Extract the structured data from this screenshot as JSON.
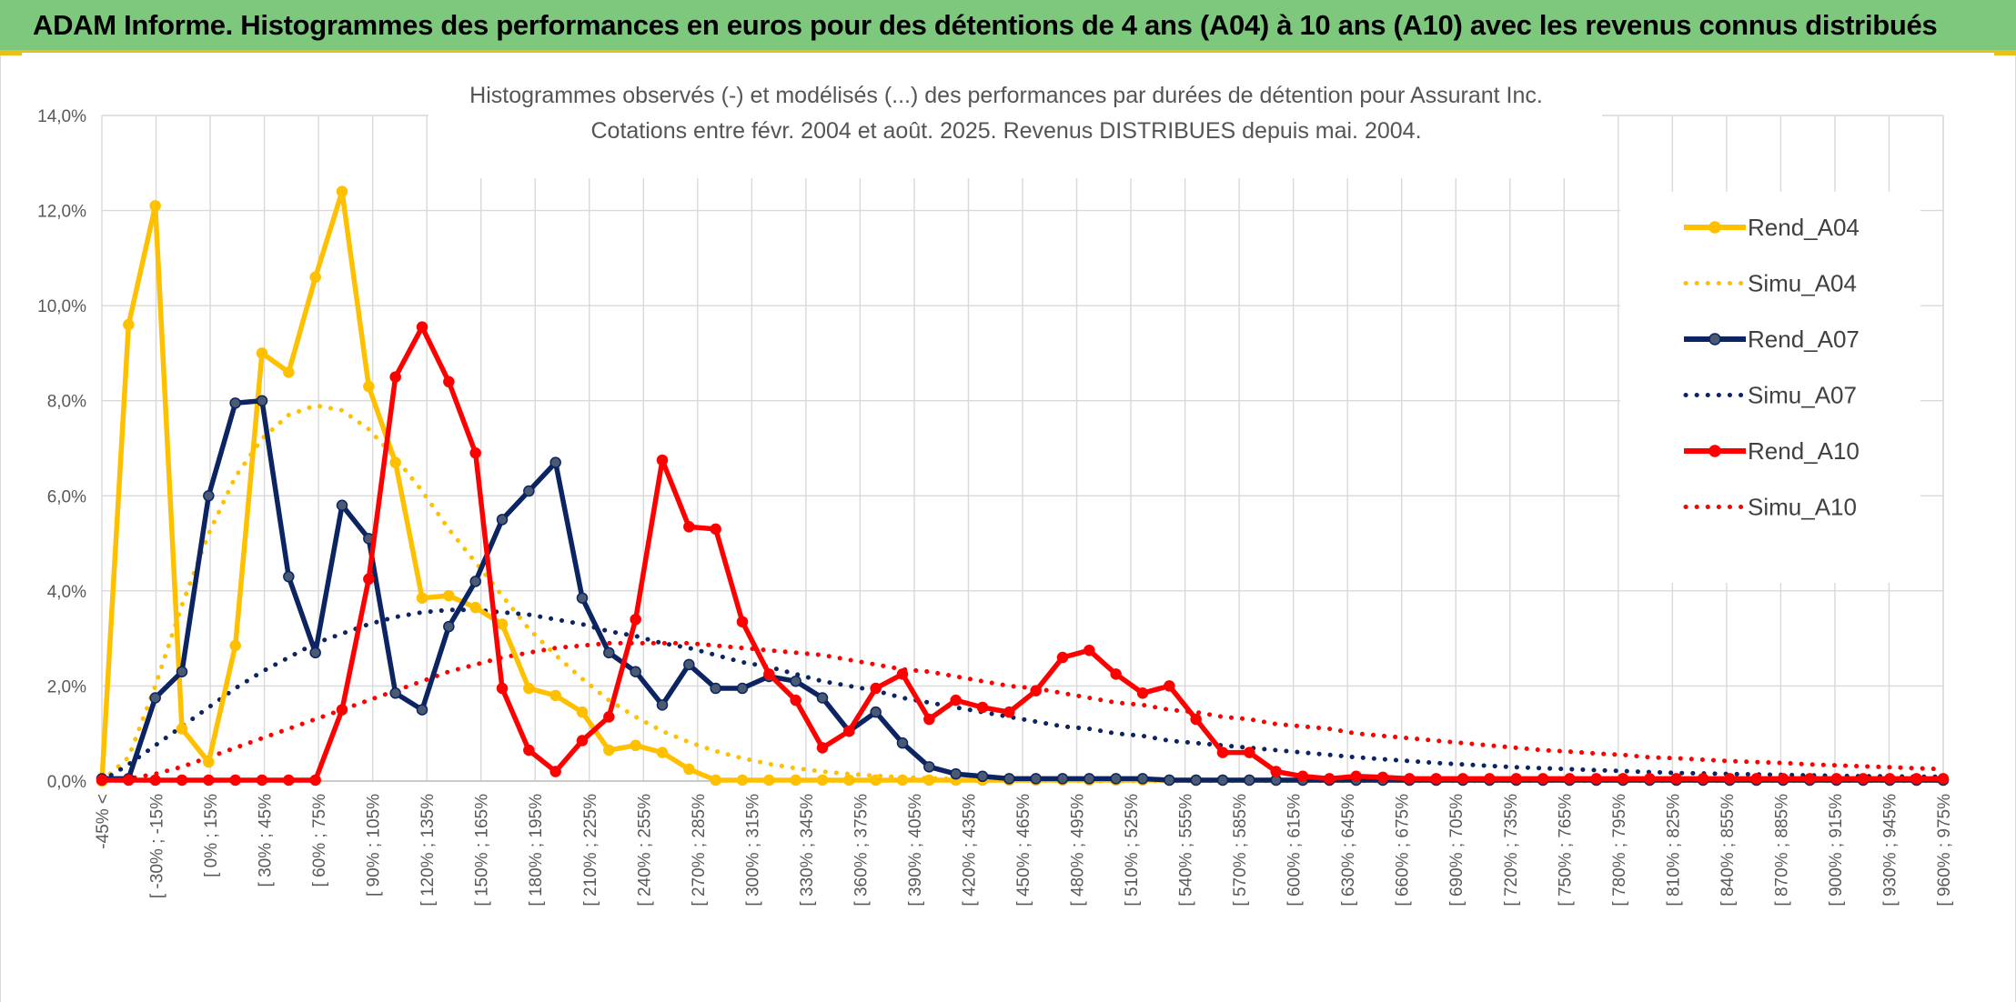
{
  "header": {
    "banner_text": "ADAM Informe. Histogrammes des performances en euros pour des détentions de 4 ans (A04) à 10 ans (A10) avec les revenus connus distribués"
  },
  "colors": {
    "banner_bg": "#7ec87e",
    "accent": "#e7c11a",
    "A04": "#ffc000",
    "A07": "#0c2461",
    "A10": "#ff0000"
  },
  "chart_data": {
    "type": "line",
    "title_line1": "Histogrammes observés (-) et modélisés (...) des performances par durées de détention pour Assurant Inc.",
    "title_line2": "Cotations entre févr. 2004 et août. 2025. Revenus DISTRIBUES depuis mai. 2004.",
    "xlabel": "",
    "ylabel": "",
    "ylim": [
      0,
      14
    ],
    "y_ticks": [
      "0,0%",
      "2,0%",
      "4,0%",
      "6,0%",
      "8,0%",
      "10,0%",
      "12,0%",
      "14,0%"
    ],
    "grid": true,
    "legend_position": "right",
    "x_tick_labels": [
      "-45% <",
      "[ -30% ; -15%",
      "[ 0% ; 15%",
      "[ 30% ; 45%",
      "[ 60% ; 75%",
      "[ 90% ; 105%",
      "[ 120% ; 135%",
      "[ 150% ; 165%",
      "[ 180% ; 195%",
      "[ 210% ; 225%",
      "[ 240% ; 255%",
      "[ 270% ; 285%",
      "[ 300% ; 315%",
      "[ 330% ; 345%",
      "[ 360% ; 375%",
      "[ 390% ; 405%",
      "[ 420% ; 435%",
      "[ 450% ; 465%",
      "[ 480% ; 495%",
      "[ 510% ; 525%",
      "[ 540% ; 555%",
      "[ 570% ; 585%",
      "[ 600% ; 615%",
      "[ 630% ; 645%",
      "[ 660% ; 675%",
      "[ 690% ; 705%",
      "[ 720% ; 735%",
      "[ 750% ; 765%",
      "[ 780% ; 795%",
      "[ 810% ; 825%",
      "[ 840% ; 855%",
      "[ 870% ; 885%",
      "[ 900% ; 915%",
      "[ 930% ; 945%",
      "[ 960% ; 975%"
    ],
    "series": [
      {
        "name": "Rend_A04",
        "style": "solid",
        "color": "#ffc000",
        "values": [
          0.0,
          9.6,
          12.1,
          1.1,
          0.4,
          2.85,
          9.0,
          8.6,
          10.6,
          12.4,
          8.3,
          6.7,
          3.85,
          3.9,
          3.65,
          3.3,
          1.95,
          1.8,
          1.45,
          0.65,
          0.75,
          0.6,
          0.25,
          0.02,
          0.02,
          0.02,
          0.02,
          0.02,
          0.02,
          0.02,
          0.02,
          0.02,
          0.02,
          0.02,
          0.02,
          0.02,
          0.02,
          0.02,
          0.02,
          0.02,
          0.02,
          0.02,
          0.02,
          0.02,
          0.02,
          0.02,
          0.02,
          0.02,
          0.02,
          0.02,
          0.02,
          0.02,
          0.02,
          0.02,
          0.02,
          0.02,
          0.02,
          0.02,
          0.02,
          0.02,
          0.02,
          0.02,
          0.02,
          0.02,
          0.02,
          0.02,
          0.02,
          0.02,
          0.02,
          0.02
        ]
      },
      {
        "name": "Simu_A04",
        "style": "dotted",
        "color": "#ffc000",
        "values": [
          0.0,
          0.5,
          2.0,
          3.7,
          5.2,
          6.4,
          7.2,
          7.7,
          7.9,
          7.8,
          7.4,
          6.8,
          6.1,
          5.3,
          4.6,
          3.9,
          3.2,
          2.65,
          2.15,
          1.7,
          1.35,
          1.05,
          0.82,
          0.63,
          0.48,
          0.36,
          0.27,
          0.2,
          0.15,
          0.11,
          0.08,
          0.06,
          0.04,
          0.03,
          0.02,
          0.01,
          0.01,
          0.0,
          0.0,
          0.0,
          0.0,
          0.0,
          0.0,
          0.0,
          0.0,
          0.0,
          0.0,
          0.0,
          0.0,
          0.0,
          0.0,
          0.0,
          0.0,
          0.0,
          0.0,
          0.0,
          0.0,
          0.0,
          0.0,
          0.0,
          0.0,
          0.0,
          0.0,
          0.0,
          0.0,
          0.0,
          0.0,
          0.0,
          0.0,
          0.0
        ]
      },
      {
        "name": "Rend_A07",
        "style": "solid",
        "color": "#0c2461",
        "values": [
          0.05,
          0.05,
          1.75,
          2.3,
          6.0,
          7.95,
          8.0,
          4.3,
          2.7,
          5.8,
          5.1,
          1.85,
          1.5,
          3.25,
          4.2,
          5.5,
          6.1,
          6.7,
          3.85,
          2.7,
          2.3,
          1.6,
          2.45,
          1.95,
          1.95,
          2.2,
          2.1,
          1.75,
          1.05,
          1.45,
          0.8,
          0.3,
          0.15,
          0.1,
          0.05,
          0.05,
          0.05,
          0.05,
          0.05,
          0.05,
          0.02,
          0.02,
          0.02,
          0.02,
          0.02,
          0.02,
          0.02,
          0.02,
          0.02,
          0.02,
          0.02,
          0.02,
          0.02,
          0.02,
          0.02,
          0.02,
          0.02,
          0.02,
          0.02,
          0.02,
          0.02,
          0.02,
          0.02,
          0.02,
          0.02,
          0.02,
          0.02,
          0.02,
          0.02,
          0.02
        ]
      },
      {
        "name": "Simu_A07",
        "style": "dotted",
        "color": "#0c2461",
        "values": [
          0.0,
          0.35,
          0.75,
          1.15,
          1.55,
          1.95,
          2.3,
          2.6,
          2.9,
          3.1,
          3.3,
          3.45,
          3.55,
          3.6,
          3.6,
          3.55,
          3.5,
          3.4,
          3.3,
          3.15,
          3.05,
          2.9,
          2.8,
          2.65,
          2.5,
          2.4,
          2.25,
          2.1,
          2.0,
          1.9,
          1.75,
          1.65,
          1.55,
          1.45,
          1.35,
          1.25,
          1.15,
          1.1,
          1.0,
          0.95,
          0.85,
          0.8,
          0.75,
          0.7,
          0.65,
          0.6,
          0.55,
          0.5,
          0.46,
          0.42,
          0.38,
          0.35,
          0.32,
          0.29,
          0.27,
          0.25,
          0.23,
          0.21,
          0.19,
          0.17,
          0.16,
          0.15,
          0.14,
          0.13,
          0.12,
          0.11,
          0.1,
          0.1,
          0.09,
          0.09
        ]
      },
      {
        "name": "Rend_A10",
        "style": "solid",
        "color": "#ff0000",
        "values": [
          0.02,
          0.02,
          0.02,
          0.02,
          0.02,
          0.02,
          0.02,
          0.02,
          0.02,
          1.5,
          4.25,
          8.5,
          9.55,
          8.4,
          6.9,
          1.95,
          0.65,
          0.2,
          0.85,
          1.35,
          3.4,
          6.75,
          5.35,
          5.3,
          3.35,
          2.25,
          1.7,
          0.7,
          1.05,
          1.95,
          2.25,
          1.3,
          1.7,
          1.55,
          1.45,
          1.9,
          2.6,
          2.75,
          2.25,
          1.85,
          2.0,
          1.3,
          0.6,
          0.6,
          0.2,
          0.1,
          0.05,
          0.1,
          0.08,
          0.05,
          0.05,
          0.05,
          0.05,
          0.05,
          0.05,
          0.05,
          0.05,
          0.05,
          0.05,
          0.05,
          0.05,
          0.05,
          0.05,
          0.05,
          0.05,
          0.05,
          0.05,
          0.05,
          0.05,
          0.05
        ]
      },
      {
        "name": "Simu_A10",
        "style": "dotted",
        "color": "#ff0000",
        "values": [
          0.0,
          0.05,
          0.15,
          0.3,
          0.5,
          0.7,
          0.9,
          1.1,
          1.3,
          1.5,
          1.7,
          1.9,
          2.1,
          2.3,
          2.45,
          2.6,
          2.7,
          2.8,
          2.85,
          2.9,
          2.9,
          2.9,
          2.9,
          2.85,
          2.8,
          2.75,
          2.7,
          2.65,
          2.55,
          2.45,
          2.35,
          2.3,
          2.2,
          2.1,
          2.0,
          1.95,
          1.85,
          1.75,
          1.65,
          1.6,
          1.5,
          1.45,
          1.35,
          1.3,
          1.2,
          1.15,
          1.1,
          1.0,
          0.95,
          0.9,
          0.85,
          0.8,
          0.75,
          0.7,
          0.65,
          0.62,
          0.58,
          0.55,
          0.5,
          0.48,
          0.45,
          0.42,
          0.4,
          0.38,
          0.35,
          0.33,
          0.31,
          0.29,
          0.27,
          0.25
        ]
      }
    ]
  }
}
